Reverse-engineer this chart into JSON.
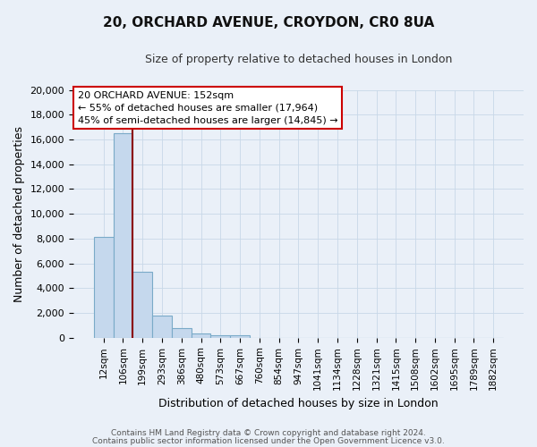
{
  "title": "20, ORCHARD AVENUE, CROYDON, CR0 8UA",
  "subtitle": "Size of property relative to detached houses in London",
  "xlabel": "Distribution of detached houses by size in London",
  "ylabel": "Number of detached properties",
  "bar_categories": [
    "12sqm",
    "106sqm",
    "199sqm",
    "293sqm",
    "386sqm",
    "480sqm",
    "573sqm",
    "667sqm",
    "760sqm",
    "854sqm",
    "947sqm",
    "1041sqm",
    "1134sqm",
    "1228sqm",
    "1321sqm",
    "1415sqm",
    "1508sqm",
    "1602sqm",
    "1695sqm",
    "1789sqm",
    "1882sqm"
  ],
  "bar_values": [
    8100,
    16500,
    5300,
    1800,
    800,
    350,
    200,
    200,
    0,
    0,
    0,
    0,
    0,
    0,
    0,
    0,
    0,
    0,
    0,
    0,
    0
  ],
  "bar_color": "#c5d8ed",
  "bar_edge_color": "#7aaac8",
  "ylim": [
    0,
    20000
  ],
  "yticks": [
    0,
    2000,
    4000,
    6000,
    8000,
    10000,
    12000,
    14000,
    16000,
    18000,
    20000
  ],
  "property_line_color": "#8b0000",
  "annotation_title": "20 ORCHARD AVENUE: 152sqm",
  "annotation_line1": "← 55% of detached houses are smaller (17,964)",
  "annotation_line2": "45% of semi-detached houses are larger (14,845) →",
  "annotation_box_color": "#ffffff",
  "annotation_box_edge_color": "#cc0000",
  "grid_color": "#c8d8e8",
  "bg_color": "#eaf0f8",
  "footer1": "Contains HM Land Registry data © Crown copyright and database right 2024.",
  "footer2": "Contains public sector information licensed under the Open Government Licence v3.0."
}
